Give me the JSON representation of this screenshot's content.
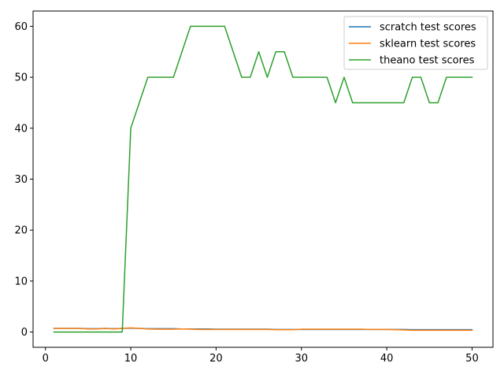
{
  "chart_data": {
    "type": "line",
    "title": "",
    "xlabel": "",
    "ylabel": "",
    "x": [
      1,
      2,
      3,
      4,
      5,
      6,
      7,
      8,
      9,
      10,
      11,
      12,
      13,
      14,
      15,
      16,
      17,
      18,
      19,
      20,
      21,
      22,
      23,
      24,
      25,
      26,
      27,
      28,
      29,
      30,
      31,
      32,
      33,
      34,
      35,
      36,
      37,
      38,
      39,
      40,
      41,
      42,
      43,
      44,
      45,
      46,
      47,
      48,
      49,
      50
    ],
    "xlim": [
      -1.45,
      52.45
    ],
    "ylim": [
      -3,
      63
    ],
    "xticks": [
      0,
      10,
      20,
      30,
      40,
      50
    ],
    "yticks": [
      0,
      10,
      20,
      30,
      40,
      50,
      60
    ],
    "grid": false,
    "legend_position": "top-right",
    "series": [
      {
        "name": "scratch test scores",
        "color": "#1f77b4",
        "values": [
          0.7,
          0.7,
          0.7,
          0.7,
          0.65,
          0.65,
          0.7,
          0.65,
          0.7,
          0.75,
          0.7,
          0.65,
          0.65,
          0.65,
          0.65,
          0.6,
          0.6,
          0.6,
          0.6,
          0.55,
          0.55,
          0.55,
          0.55,
          0.55,
          0.55,
          0.55,
          0.5,
          0.5,
          0.5,
          0.5,
          0.5,
          0.5,
          0.5,
          0.5,
          0.5,
          0.5,
          0.5,
          0.5,
          0.5,
          0.5,
          0.5,
          0.5,
          0.45,
          0.45,
          0.45,
          0.45,
          0.45,
          0.45,
          0.45,
          0.45
        ]
      },
      {
        "name": "sklearn test scores",
        "color": "#ff7f0e",
        "values": [
          0.7,
          0.7,
          0.7,
          0.7,
          0.6,
          0.6,
          0.7,
          0.6,
          0.7,
          0.8,
          0.7,
          0.6,
          0.55,
          0.55,
          0.55,
          0.6,
          0.55,
          0.5,
          0.5,
          0.5,
          0.5,
          0.5,
          0.5,
          0.5,
          0.5,
          0.5,
          0.45,
          0.45,
          0.45,
          0.55,
          0.55,
          0.55,
          0.55,
          0.55,
          0.55,
          0.55,
          0.55,
          0.5,
          0.5,
          0.5,
          0.45,
          0.4,
          0.35,
          0.35,
          0.35,
          0.35,
          0.35,
          0.35,
          0.35,
          0.35
        ]
      },
      {
        "name": "theano test scores",
        "color": "#2ca02c",
        "values": [
          0,
          0,
          0,
          0,
          0,
          0,
          0,
          0,
          0,
          40,
          45,
          50,
          50,
          50,
          50,
          55,
          60,
          60,
          60,
          60,
          60,
          55,
          50,
          50,
          55,
          50,
          55,
          55,
          50,
          50,
          50,
          50,
          50,
          45,
          50,
          45,
          45,
          45,
          45,
          45,
          45,
          45,
          50,
          50,
          45,
          45,
          50,
          50,
          50,
          50
        ]
      }
    ]
  }
}
